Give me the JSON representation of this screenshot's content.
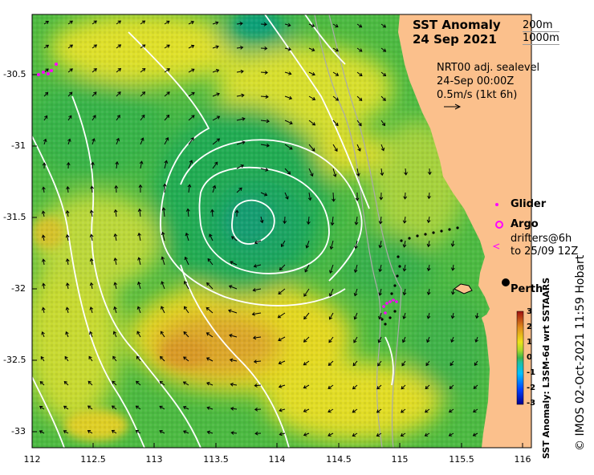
{
  "title": {
    "line1": "SST Anomaly",
    "line2": "24 Sep 2021"
  },
  "isobaths": [
    "200m",
    "1000m"
  ],
  "currents_info": {
    "line1": "NRT00 adj. sealevel",
    "line2": "24-Sep 00:00Z",
    "line3": "0.5m/s (1kt 6h)"
  },
  "legend": {
    "glider": "Glider",
    "argo": "Argo",
    "drifters_line1": "drifters@6h",
    "drifters_line2": "to 25/09 12Z"
  },
  "place": "Perth",
  "colorbar": {
    "title": "SST Anomaly: L3SM-6d wrt SSTAARS",
    "ticks": [
      "3",
      "2",
      "1",
      "0",
      "-1",
      "-2",
      "-3"
    ],
    "range": [
      -3,
      3
    ]
  },
  "credit": "© IMOS 02-Oct-2021 11:59 Hobart",
  "axes": {
    "x_ticks": [
      "112",
      "112.5",
      "113",
      "113.5",
      "114",
      "114.5",
      "115",
      "115.5",
      "116"
    ],
    "y_ticks": [
      "-30.5",
      "-31",
      "-31.5",
      "-32",
      "-32.5",
      "-33"
    ],
    "lon_range": [
      112,
      116.1
    ],
    "lat_range": [
      -33.1,
      -30.1
    ]
  },
  "colors": {
    "land": "#fbc08c",
    "anomaly_neutral": "#39b54a",
    "anomaly_warm": "#e3e21a",
    "anomaly_hot": "#d9a21e",
    "isobath": "#aaaaaa",
    "contour": "#ffffff",
    "glider": "#ff00ff",
    "argo": "#ff00ff",
    "drifter": "#000000"
  }
}
